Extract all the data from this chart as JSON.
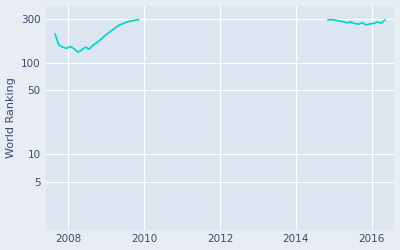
{
  "ylabel": "World Ranking",
  "line_color": "#00d4c8",
  "bg_color": "#e8edf4",
  "plot_bg_color": "#dce6f0",
  "grid_color": "#ffffff",
  "yticks": [
    300,
    100,
    50,
    10,
    5
  ],
  "xticks": [
    2008,
    2010,
    2012,
    2014,
    2016
  ],
  "xlim": [
    2007.4,
    2016.6
  ],
  "ylim": [
    1.5,
    420
  ],
  "segment1_x": [
    2007.65,
    2007.75,
    2007.85,
    2007.95,
    2008.05,
    2008.15,
    2008.25,
    2008.35,
    2008.45,
    2008.55,
    2008.65,
    2008.75,
    2008.85,
    2008.95,
    2009.05,
    2009.15,
    2009.25,
    2009.35,
    2009.45,
    2009.55,
    2009.65,
    2009.75,
    2009.85
  ],
  "segment1_y": [
    205,
    155,
    148,
    143,
    150,
    142,
    130,
    137,
    148,
    140,
    155,
    165,
    178,
    195,
    210,
    225,
    242,
    258,
    268,
    278,
    285,
    290,
    295
  ],
  "segment2_x": [
    2014.85,
    2014.95,
    2015.05,
    2015.15,
    2015.25,
    2015.35,
    2015.45,
    2015.55,
    2015.65,
    2015.75,
    2015.85,
    2015.95,
    2016.05,
    2016.15,
    2016.25,
    2016.35
  ],
  "segment2_y": [
    293,
    295,
    290,
    285,
    280,
    272,
    278,
    268,
    263,
    272,
    258,
    265,
    268,
    278,
    270,
    292
  ]
}
